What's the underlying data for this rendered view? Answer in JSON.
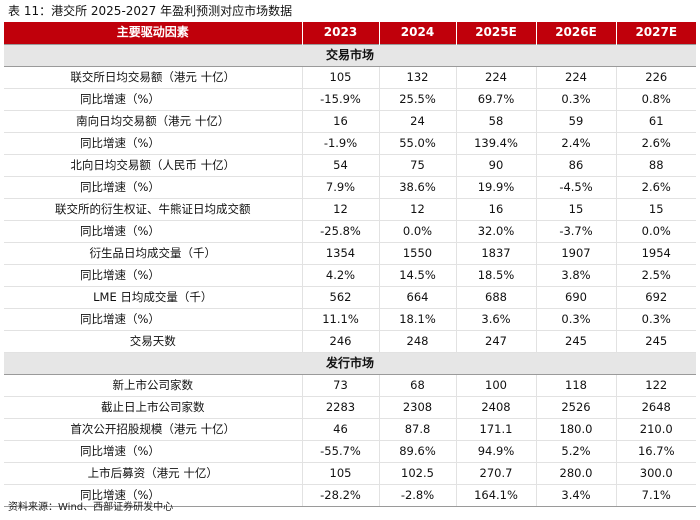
{
  "caption": "表 11：港交所 2025-2027 年盈利预测对应市场数据",
  "header": [
    "主要驱动因素",
    "2023",
    "2024",
    "2025E",
    "2026E",
    "2027E"
  ],
  "sections": [
    {
      "title": "交易市场",
      "rows": [
        {
          "label": "联交所日均交易额（港元 十亿）",
          "type": "main",
          "values": [
            "105",
            "132",
            "224",
            "224",
            "226"
          ]
        },
        {
          "label": "同比增速（%）",
          "type": "growth",
          "values": [
            "-15.9%",
            "25.5%",
            "69.7%",
            "0.3%",
            "0.8%"
          ]
        },
        {
          "label": "南向日均交易额（港元 十亿）",
          "type": "main",
          "values": [
            "16",
            "24",
            "58",
            "59",
            "61"
          ]
        },
        {
          "label": "同比增速（%）",
          "type": "growth",
          "values": [
            "-1.9%",
            "55.0%",
            "139.4%",
            "2.4%",
            "2.6%"
          ]
        },
        {
          "label": "北向日均交易额（人民币 十亿）",
          "type": "main",
          "values": [
            "54",
            "75",
            "90",
            "86",
            "88"
          ]
        },
        {
          "label": "同比增速（%）",
          "type": "growth",
          "values": [
            "7.9%",
            "38.6%",
            "19.9%",
            "-4.5%",
            "2.6%"
          ]
        },
        {
          "label": "联交所的衍生权证、牛熊证日均成交额",
          "type": "main",
          "values": [
            "12",
            "12",
            "16",
            "15",
            "15"
          ]
        },
        {
          "label": "同比增速（%）",
          "type": "growth",
          "values": [
            "-25.8%",
            "0.0%",
            "32.0%",
            "-3.7%",
            "0.0%"
          ]
        },
        {
          "label": "衍生品日均成交量（千）",
          "type": "main",
          "values": [
            "1354",
            "1550",
            "1837",
            "1907",
            "1954"
          ]
        },
        {
          "label": "同比增速（%）",
          "type": "growth",
          "values": [
            "4.2%",
            "14.5%",
            "18.5%",
            "3.8%",
            "2.5%"
          ]
        },
        {
          "label": "LME 日均成交量（千）",
          "type": "main",
          "values": [
            "562",
            "664",
            "688",
            "690",
            "692"
          ]
        },
        {
          "label": "同比增速（%）",
          "type": "growth",
          "values": [
            "11.1%",
            "18.1%",
            "3.6%",
            "0.3%",
            "0.3%"
          ]
        },
        {
          "label": "交易天数",
          "type": "main",
          "values": [
            "246",
            "248",
            "247",
            "245",
            "245"
          ]
        }
      ]
    },
    {
      "title": "发行市场",
      "rows": [
        {
          "label": "新上市公司家数",
          "type": "main",
          "values": [
            "73",
            "68",
            "100",
            "118",
            "122"
          ]
        },
        {
          "label": "截止日上市公司家数",
          "type": "main",
          "values": [
            "2283",
            "2308",
            "2408",
            "2526",
            "2648"
          ]
        },
        {
          "label": "首次公开招股规模（港元 十亿）",
          "type": "main",
          "values": [
            "46",
            "87.8",
            "171.1",
            "180.0",
            "210.0"
          ]
        },
        {
          "label": "同比增速（%）",
          "type": "growth",
          "values": [
            "-55.7%",
            "89.6%",
            "94.9%",
            "5.2%",
            "16.7%"
          ]
        },
        {
          "label": "上市后募资（港元 十亿）",
          "type": "main",
          "values": [
            "105",
            "102.5",
            "270.7",
            "280.0",
            "300.0"
          ]
        },
        {
          "label": "同比增速（%）",
          "type": "growth",
          "values": [
            "-28.2%",
            "-2.8%",
            "164.1%",
            "3.4%",
            "7.1%"
          ]
        }
      ]
    }
  ],
  "source": "资料来源：Wind、西部证券研发中心",
  "colors": {
    "header_bg": "#c0000b",
    "section_bg": "#e6e6e6"
  }
}
